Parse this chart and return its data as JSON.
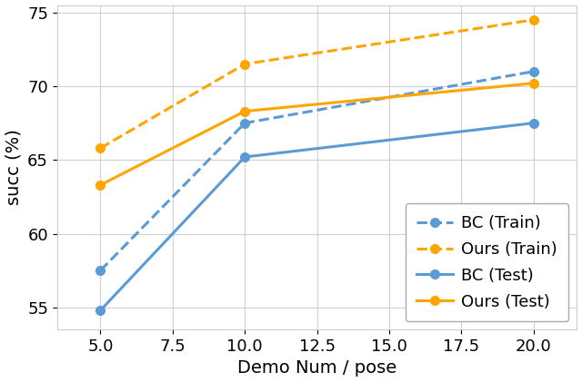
{
  "x": [
    5,
    10,
    20
  ],
  "bc_train": [
    57.5,
    67.5,
    71.0
  ],
  "ours_train": [
    65.8,
    71.5,
    74.5
  ],
  "bc_test": [
    54.8,
    65.2,
    67.5
  ],
  "ours_test": [
    63.3,
    68.3,
    70.2
  ],
  "blue_color": "#5B9BD5",
  "orange_color": "#FFA500",
  "xlabel": "Demo Num / pose",
  "ylabel": "succ (%)",
  "ylim": [
    53.5,
    75.5
  ],
  "xlim": [
    3.5,
    21.5
  ],
  "yticks": [
    55,
    60,
    65,
    70,
    75
  ],
  "xticks": [
    5.0,
    7.5,
    10.0,
    12.5,
    15.0,
    17.5,
    20.0
  ],
  "xtick_labels": [
    "5.0",
    "7.5",
    "10.0",
    "12.5",
    "15.0",
    "17.5",
    "20.0"
  ],
  "legend_labels": [
    "BC (Train)",
    "Ours (Train)",
    "BC (Test)",
    "Ours (Test)"
  ],
  "marker": "o",
  "linewidth": 2.2,
  "markersize": 7,
  "xlabel_fontsize": 14,
  "ylabel_fontsize": 14,
  "tick_fontsize": 13,
  "legend_fontsize": 13
}
